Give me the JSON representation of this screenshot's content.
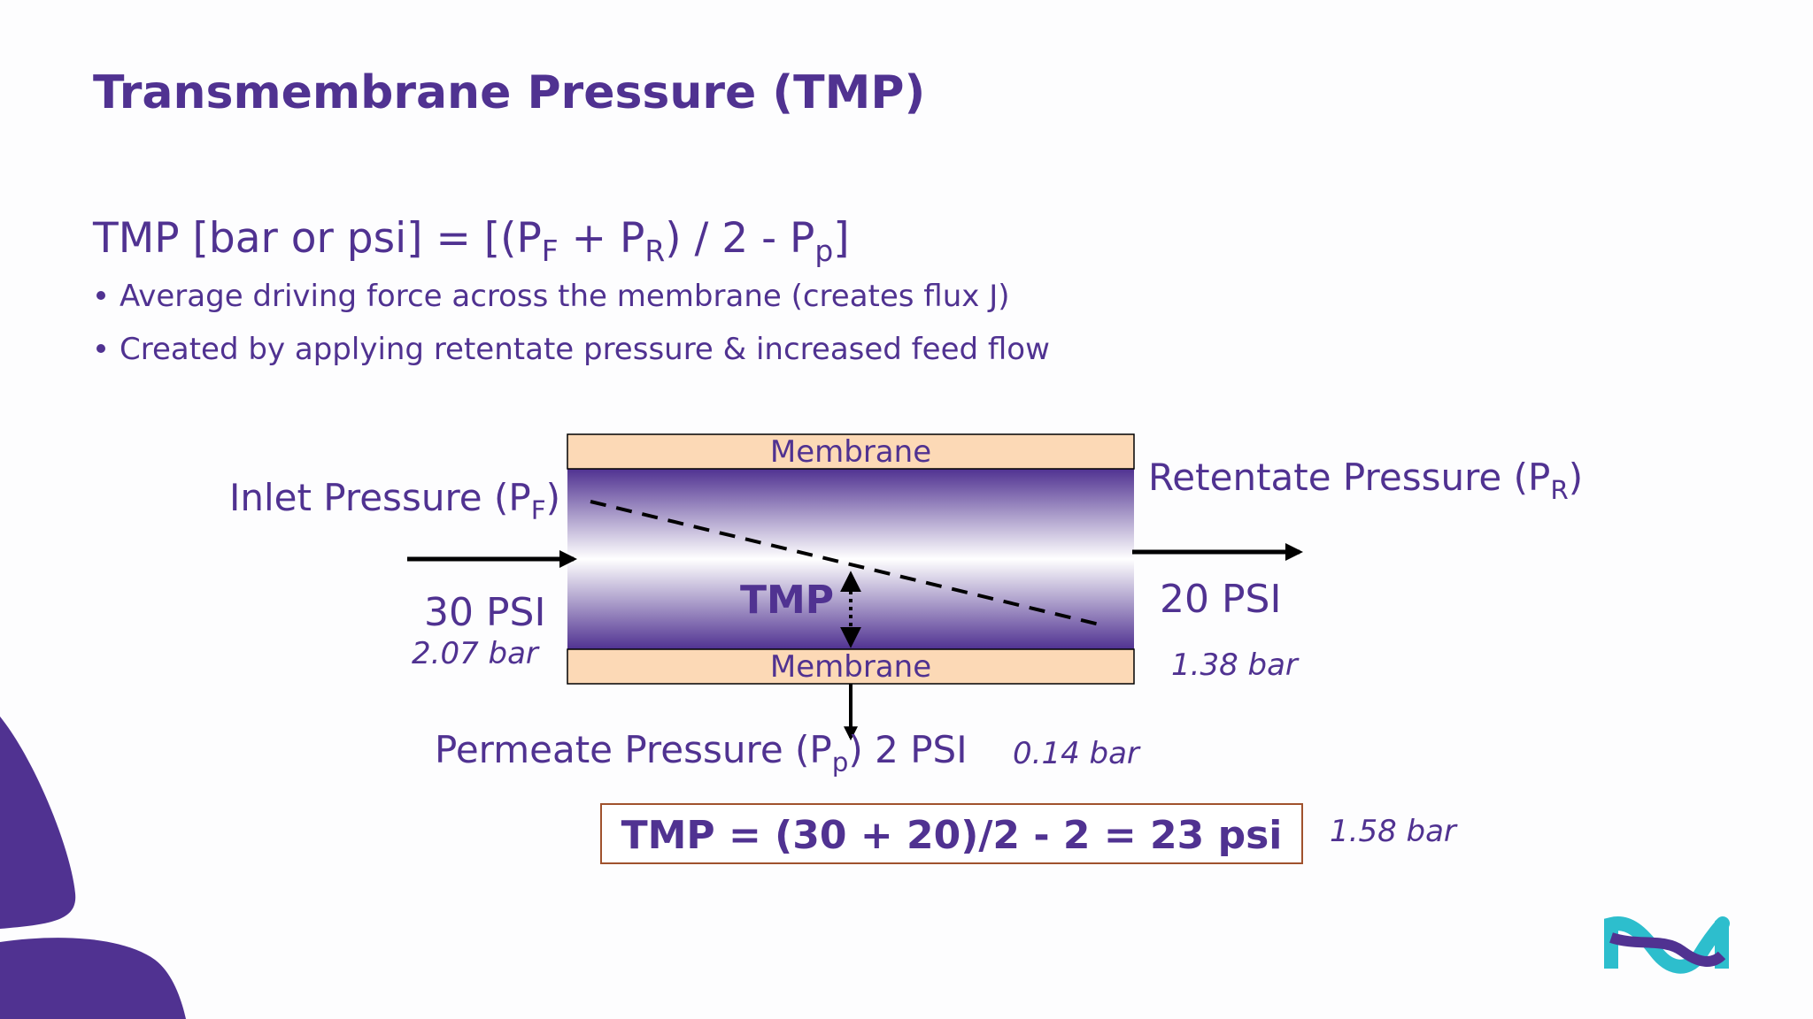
{
  "header": {
    "title": "Transmembrane Pressure (TMP)"
  },
  "formula": [
    "TMP [bar or psi] = [(P",
    "F",
    " + P",
    "R",
    ") / 2 - P",
    "p",
    "]"
  ],
  "bullets": [
    "Average driving force across the membrane (creates flux J)",
    "Created by applying retentate pressure & increased feed flow"
  ],
  "diagram": {
    "membrane_top": "Membrane",
    "membrane_bottom": "Membrane",
    "tmp_label": "TMP",
    "inlet": {
      "label": [
        "Inlet Pressure (P",
        "F",
        ")"
      ],
      "psi": "30 PSI",
      "bar": "2.07 bar"
    },
    "retentate": {
      "label": [
        "Retentate Pressure (P",
        "R",
        ")"
      ],
      "psi": "20 PSI",
      "bar": "1.38 bar"
    },
    "permeate": {
      "label": [
        "Permeate Pressure (P",
        "p",
        ") 2 PSI"
      ],
      "bar": "0.14 bar"
    },
    "result": {
      "equation": "TMP = (30 + 20)/2 - 2 = 23 psi",
      "bar": "1.58 bar"
    }
  }
}
